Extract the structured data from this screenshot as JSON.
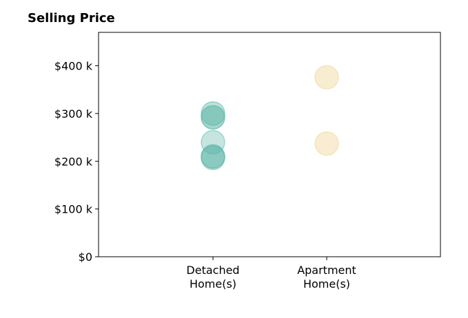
{
  "chart_data": {
    "type": "scatter",
    "title": "Selling Price",
    "xlabel": "",
    "ylabel": "",
    "categories": [
      [
        "Detached",
        "Home(s)"
      ],
      [
        "Apartment",
        "Home(s)"
      ]
    ],
    "y_ticks": [
      0,
      100000,
      200000,
      300000,
      400000
    ],
    "y_tick_labels": [
      "$0",
      "$100 k",
      "$200 k",
      "$300 k",
      "$400 k"
    ],
    "ylim": [
      0,
      470000
    ],
    "grid": false,
    "series": [
      {
        "category_index": 0,
        "color": "#5bb5a5",
        "values": [
          300000,
          292000,
          240000,
          210000,
          207000
        ],
        "opacity": [
          0.4,
          0.55,
          0.35,
          0.55,
          0.35
        ]
      },
      {
        "category_index": 1,
        "color": "#f3dfb2",
        "values": [
          376000,
          237000
        ],
        "opacity": [
          0.6,
          0.6
        ]
      }
    ]
  }
}
